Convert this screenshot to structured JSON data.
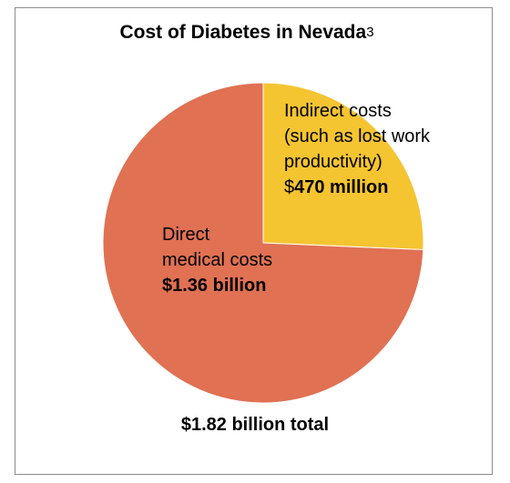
{
  "title": "Cost of Diabetes in Nevada",
  "title_superscript": "3",
  "colors": {
    "direct": "#E07153",
    "indirect": "#F4C431"
  },
  "chart_data": {
    "type": "pie",
    "title": "Cost of Diabetes in Nevada",
    "total_label": "$1.82 billion total",
    "start_angle_deg": 0,
    "slices": [
      {
        "key": "indirect",
        "value": 0.47,
        "unit": "billion",
        "color": "#F4C431"
      },
      {
        "key": "direct",
        "value": 1.36,
        "unit": "billion",
        "color": "#E07153"
      }
    ]
  },
  "labels": {
    "indirect_line1": "Indirect costs",
    "indirect_line2": "(such as lost work",
    "indirect_line3": "productivity)",
    "indirect_prefix": "$",
    "indirect_amount": "470 million",
    "direct_line1": "Direct",
    "direct_line2": "medical costs",
    "direct_amount": "$1.36 billion"
  }
}
